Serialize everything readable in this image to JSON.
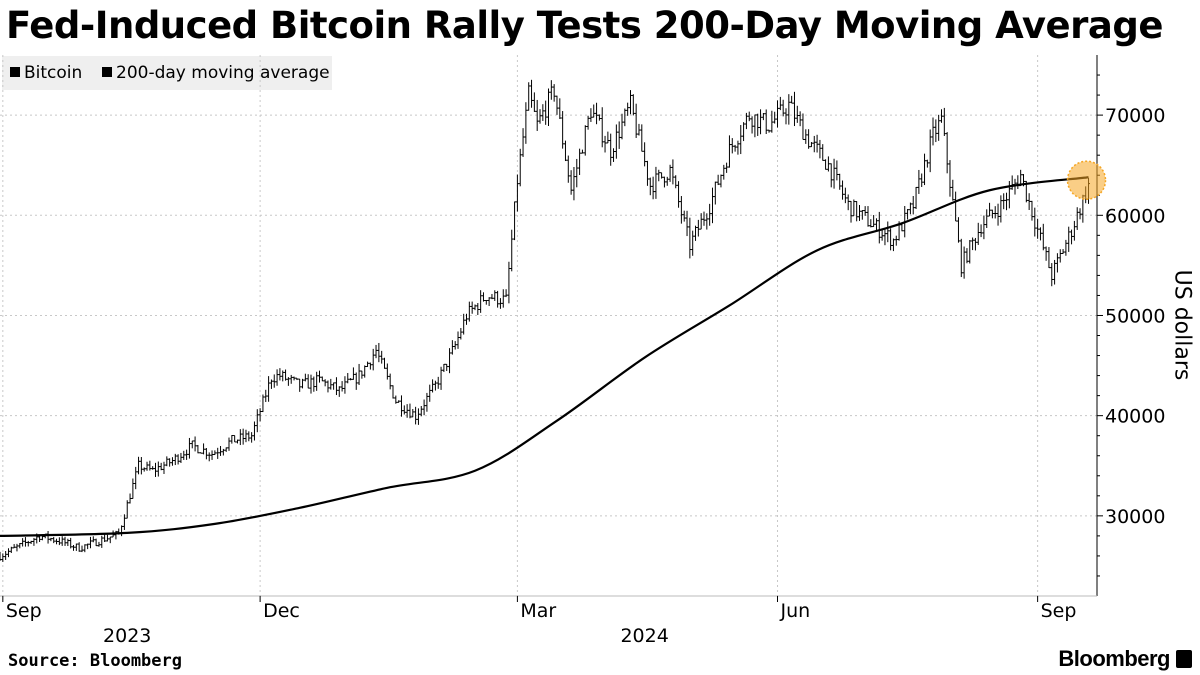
{
  "title": "Fed-Induced Bitcoin Rally Tests 200-Day Moving Average",
  "legend": [
    {
      "label": "Bitcoin",
      "color": "#000000"
    },
    {
      "label": "200-day moving average",
      "color": "#000000"
    }
  ],
  "source": "Source: Bloomberg",
  "brand": "Bloomberg",
  "highlight_color": "#f5a623",
  "chart_data": {
    "type": "line",
    "title": "Fed-Induced Bitcoin Rally Tests 200-Day Moving Average",
    "xlabel": "",
    "ylabel": "US dollars",
    "ylim": [
      22000,
      76000
    ],
    "yticks": [
      30000,
      40000,
      50000,
      60000,
      70000
    ],
    "x_tick_labels": [
      "Sep",
      "Dec",
      "Mar",
      "Jun",
      "Sep"
    ],
    "x_tick_dates": [
      "2023-09-01",
      "2023-12-01",
      "2024-03-01",
      "2024-06-01",
      "2024-09-01"
    ],
    "year_labels": [
      {
        "label": "2023",
        "date": "2023-10-15"
      },
      {
        "label": "2024",
        "date": "2024-04-15"
      }
    ],
    "xlim": [
      "2023-08-31",
      "2024-09-22"
    ],
    "grid": true,
    "legend_position": "top-left",
    "series": [
      {
        "name": "Bitcoin",
        "style": "ohlc",
        "x": [
          "2023-08-31",
          "2023-09-07",
          "2023-09-14",
          "2023-09-21",
          "2023-09-28",
          "2023-10-05",
          "2023-10-12",
          "2023-10-19",
          "2023-10-24",
          "2023-10-31",
          "2023-11-07",
          "2023-11-14",
          "2023-11-21",
          "2023-11-28",
          "2023-12-05",
          "2023-12-08",
          "2023-12-15",
          "2023-12-22",
          "2023-12-29",
          "2024-01-05",
          "2024-01-11",
          "2024-01-18",
          "2024-01-25",
          "2024-02-01",
          "2024-02-08",
          "2024-02-12",
          "2024-02-19",
          "2024-02-26",
          "2024-03-01",
          "2024-03-05",
          "2024-03-08",
          "2024-03-14",
          "2024-03-20",
          "2024-03-27",
          "2024-04-03",
          "2024-04-10",
          "2024-04-17",
          "2024-04-24",
          "2024-05-01",
          "2024-05-08",
          "2024-05-15",
          "2024-05-22",
          "2024-05-29",
          "2024-06-05",
          "2024-06-12",
          "2024-06-19",
          "2024-06-26",
          "2024-07-05",
          "2024-07-12",
          "2024-07-19",
          "2024-07-26",
          "2024-07-29",
          "2024-08-05",
          "2024-08-12",
          "2024-08-19",
          "2024-08-26",
          "2024-09-06",
          "2024-09-13",
          "2024-09-19"
        ],
        "values": [
          26000,
          27000,
          28000,
          27500,
          26800,
          27500,
          28200,
          35000,
          34500,
          35500,
          37000,
          36200,
          37500,
          38000,
          43800,
          44000,
          43000,
          43500,
          42500,
          44000,
          46500,
          41500,
          40000,
          43000,
          47000,
          50000,
          52000,
          51500,
          63500,
          72000,
          69000,
          72500,
          62500,
          70500,
          66500,
          71000,
          63000,
          64500,
          57000,
          61000,
          66500,
          70000,
          69000,
          71000,
          67500,
          65000,
          61000,
          59000,
          57500,
          61000,
          68000,
          69500,
          55000,
          59000,
          61000,
          64000,
          54000,
          58500,
          63000
        ]
      },
      {
        "name": "200-day moving average",
        "style": "line",
        "x": [
          "2023-08-31",
          "2023-10-15",
          "2023-11-15",
          "2023-12-15",
          "2024-01-15",
          "2024-02-15",
          "2024-03-15",
          "2024-04-15",
          "2024-05-15",
          "2024-06-15",
          "2024-07-15",
          "2024-08-15",
          "2024-09-19"
        ],
        "values": [
          28000,
          28300,
          29200,
          30800,
          32800,
          34500,
          39500,
          45800,
          51000,
          56500,
          59200,
          62500,
          63800
        ]
      }
    ],
    "annotations": [
      {
        "type": "circle-highlight",
        "date": "2024-09-19",
        "value": 63500
      }
    ]
  }
}
